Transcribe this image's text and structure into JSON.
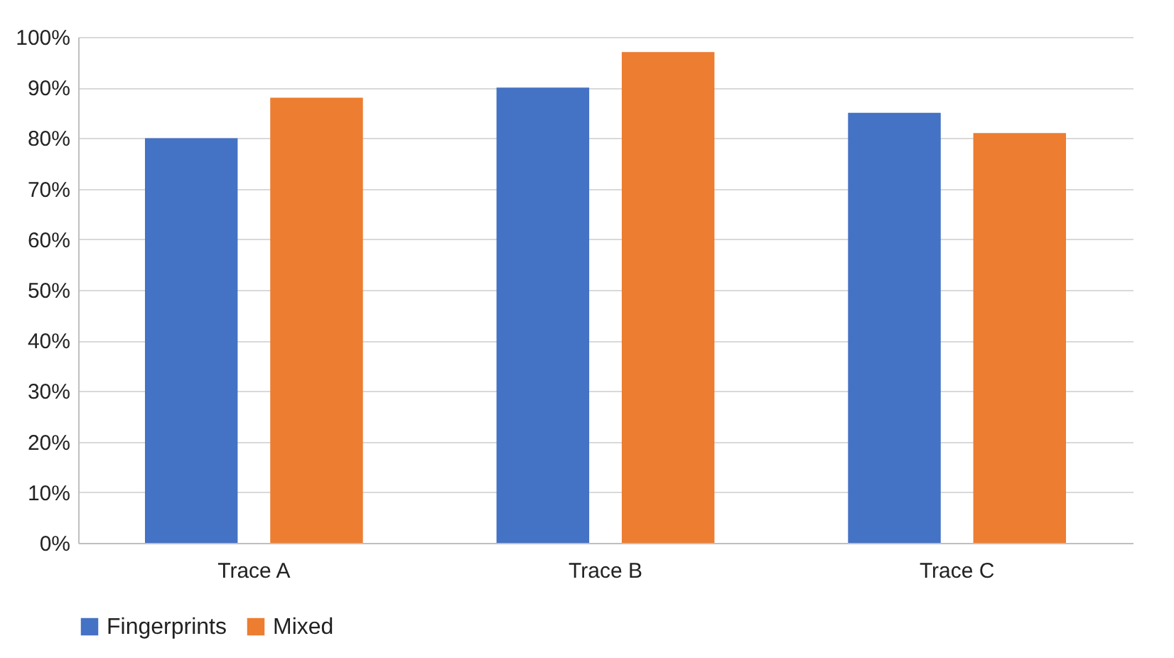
{
  "chart_data": {
    "type": "bar",
    "categories": [
      "Trace A",
      "Trace B",
      "Trace C"
    ],
    "series": [
      {
        "name": "Fingerprints",
        "color": "#4472c4",
        "values": [
          80,
          90,
          85
        ]
      },
      {
        "name": "Mixed",
        "color": "#ed7d31",
        "values": [
          88,
          97,
          81
        ]
      }
    ],
    "ylim": [
      0,
      100
    ],
    "yticks": [
      {
        "value": 0,
        "label": "0%"
      },
      {
        "value": 10,
        "label": "10%"
      },
      {
        "value": 20,
        "label": "20%"
      },
      {
        "value": 30,
        "label": "30%"
      },
      {
        "value": 40,
        "label": "40%"
      },
      {
        "value": 50,
        "label": "50%"
      },
      {
        "value": 60,
        "label": "60%"
      },
      {
        "value": 70,
        "label": "70%"
      },
      {
        "value": 80,
        "label": "80%"
      },
      {
        "value": 90,
        "label": "90%"
      },
      {
        "value": 100,
        "label": "100%"
      }
    ],
    "grid": "y",
    "legend": "bottom"
  }
}
